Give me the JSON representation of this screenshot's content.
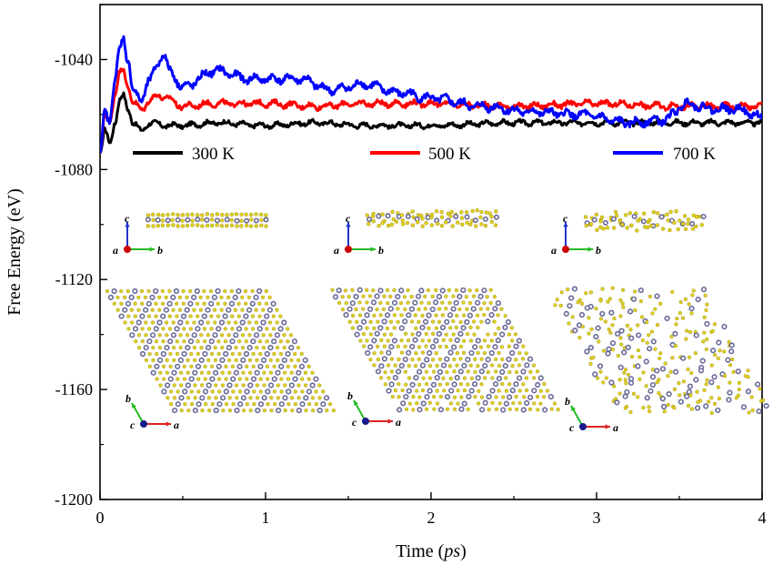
{
  "chart_data": {
    "type": "line",
    "title": "",
    "xlabel_prefix": "Time (",
    "xlabel_unit": "ps",
    "xlabel_suffix": ")",
    "ylabel": "Free Energy (eV)",
    "xlim": [
      0,
      4
    ],
    "ylim": [
      -1200,
      -1020
    ],
    "xticks": [
      "0",
      "1",
      "2",
      "3",
      "4"
    ],
    "yticks": [
      "-1040",
      "-1080",
      "-1120",
      "-1160",
      "-1200"
    ],
    "legend_position": "upper-middle",
    "grid": false,
    "series": [
      {
        "name": "300 K",
        "color": "#000000",
        "x": [
          0,
          0.03,
          0.06,
          0.09,
          0.12,
          0.14,
          0.17,
          0.2,
          0.25,
          0.3,
          0.4,
          0.5,
          0.7,
          1.0,
          1.3,
          1.6,
          2.0,
          2.5,
          3.0,
          3.5,
          4.0
        ],
        "y": [
          -1074,
          -1066,
          -1070,
          -1063,
          -1055,
          -1053,
          -1058,
          -1063,
          -1066,
          -1063,
          -1064,
          -1064,
          -1063,
          -1064,
          -1063,
          -1064,
          -1064,
          -1063,
          -1063,
          -1063,
          -1063
        ]
      },
      {
        "name": "500 K",
        "color": "#ff0000",
        "x": [
          0,
          0.03,
          0.06,
          0.09,
          0.12,
          0.14,
          0.17,
          0.2,
          0.25,
          0.3,
          0.35,
          0.4,
          0.5,
          0.7,
          1.0,
          1.3,
          1.6,
          2.0,
          2.5,
          3.0,
          3.5,
          4.0
        ],
        "y": [
          -1074,
          -1060,
          -1062,
          -1053,
          -1045,
          -1043,
          -1050,
          -1056,
          -1058,
          -1055,
          -1053,
          -1054,
          -1057,
          -1056,
          -1056,
          -1057,
          -1056,
          -1056,
          -1057,
          -1056,
          -1057,
          -1057
        ]
      },
      {
        "name": "700 K",
        "color": "#0000ff",
        "x": [
          0,
          0.03,
          0.06,
          0.09,
          0.12,
          0.14,
          0.17,
          0.2,
          0.25,
          0.3,
          0.35,
          0.38,
          0.42,
          0.5,
          0.7,
          0.9,
          1.2,
          1.4,
          1.6,
          1.8,
          2.0,
          2.3,
          2.6,
          2.9,
          3.2,
          3.4,
          3.55,
          3.7,
          3.85,
          4.0
        ],
        "y": [
          -1074,
          -1058,
          -1062,
          -1048,
          -1036,
          -1031,
          -1041,
          -1052,
          -1054,
          -1048,
          -1041,
          -1038,
          -1044,
          -1050,
          -1044,
          -1047,
          -1047,
          -1051,
          -1049,
          -1052,
          -1054,
          -1057,
          -1059,
          -1060,
          -1063,
          -1062,
          -1056,
          -1058,
          -1058,
          -1061
        ]
      }
    ]
  },
  "insets": {
    "axis_letters": {
      "a": "a",
      "b": "b",
      "c": "c"
    },
    "colors": {
      "sulfur": "#e0d020",
      "metal": "#6a6a9a",
      "a_axis": "#dd2222",
      "b_axis": "#22bb22",
      "c_axis": "#2233cc",
      "origin_red": "#cc0000",
      "origin_blue": "#1a1a8a"
    }
  }
}
